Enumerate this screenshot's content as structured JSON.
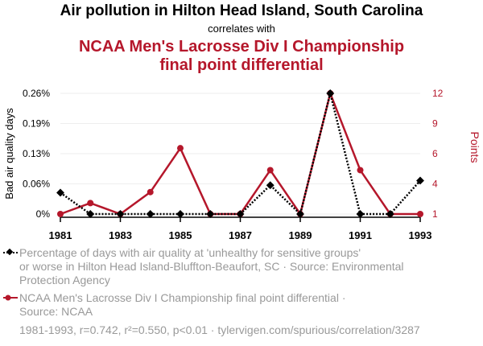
{
  "header": {
    "title": "Air pollution in Hilton Head Island, South Carolina",
    "correlates": "correlates with",
    "subtitle_line1": "NCAA Men's Lacrosse Div I Championship",
    "subtitle_line2": "final point differential"
  },
  "colors": {
    "series1": "#000000",
    "series2": "#b5172b",
    "muted": "#999999"
  },
  "chart_data": {
    "type": "line",
    "title": "Air pollution in Hilton Head Island, South Carolina",
    "x": [
      1981,
      1982,
      1983,
      1984,
      1985,
      1986,
      1987,
      1988,
      1989,
      1990,
      1991,
      1992,
      1993
    ],
    "xticks": [
      "1981",
      "1983",
      "1985",
      "1987",
      "1989",
      "1991",
      "1993"
    ],
    "xlim": [
      1981,
      1993
    ],
    "ylabel_left": "Bad air quality days",
    "ylabel_right": "Points",
    "ylim_left": [
      0,
      0.26
    ],
    "yticks_left": [
      "0%",
      "0.06%",
      "0.13%",
      "0.19%",
      "0.26%"
    ],
    "ylim_right": [
      1,
      12
    ],
    "yticks_right": [
      "1",
      "4",
      "6",
      "9",
      "12"
    ],
    "grid": true,
    "series": [
      {
        "name": "Percentage of days with air quality at 'unhealthy for sensitive groups'",
        "axis": "left",
        "style": "dotted",
        "marker": "diamond",
        "values": [
          0.046,
          0,
          0,
          0,
          0,
          0,
          0,
          0.062,
          0,
          0.26,
          0,
          0,
          0.072
        ]
      },
      {
        "name": "NCAA Men's Lacrosse Div I Championship final point differential",
        "axis": "right",
        "style": "solid",
        "marker": "circle",
        "values": [
          1,
          2,
          1,
          3,
          7,
          1,
          1,
          5,
          1,
          12,
          5,
          1,
          1
        ]
      }
    ]
  },
  "legend": {
    "series1_line1": "Percentage of days with air quality at 'unhealthy for sensitive groups'",
    "series1_line2": "or worse in Hilton Head Island-Bluffton-Beaufort, SC · Source: Environmental",
    "series1_line3": "Protection Agency",
    "series2_line1": "NCAA Men's Lacrosse Div I Championship final point differential ·",
    "series2_line2": "Source: NCAA"
  },
  "footer": "1981-1993, r=0.742, r²=0.550, p<0.01 · tylervigen.com/spurious/correlation/3287"
}
